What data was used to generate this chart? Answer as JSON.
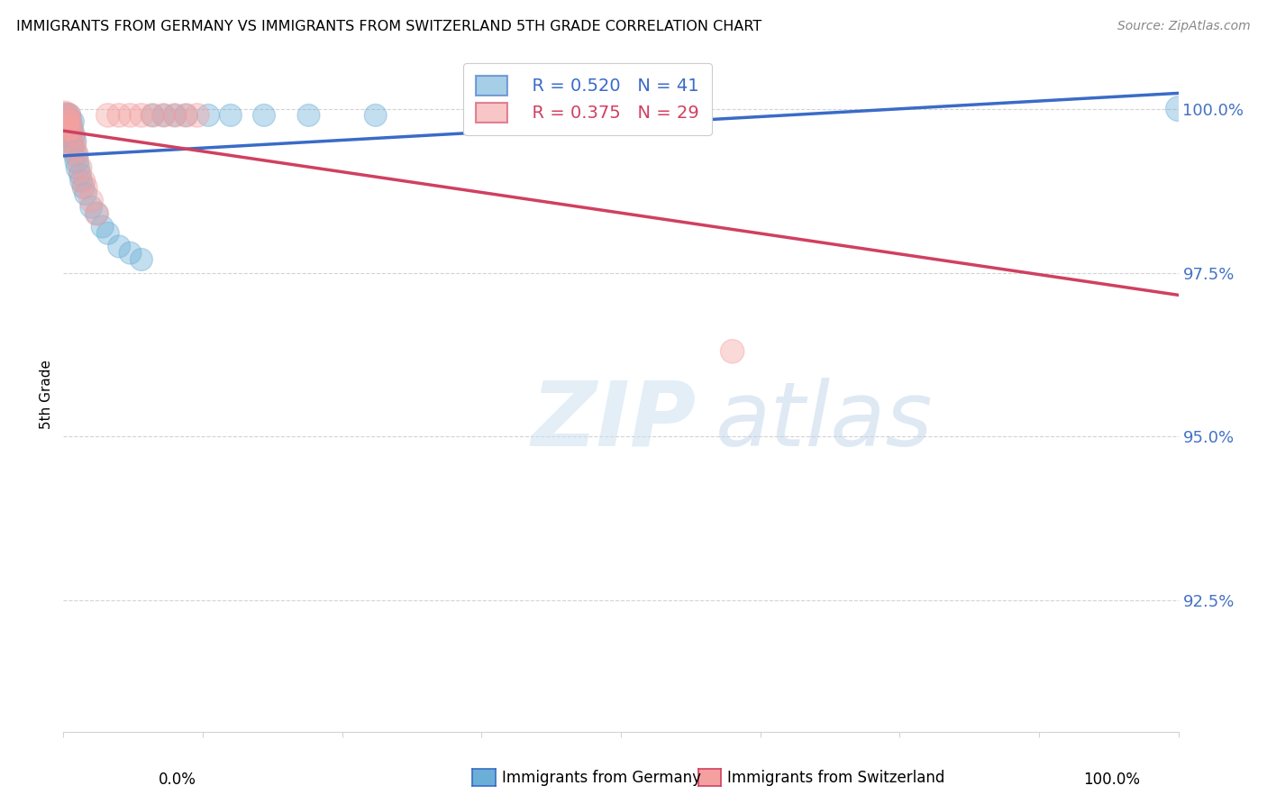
{
  "title": "IMMIGRANTS FROM GERMANY VS IMMIGRANTS FROM SWITZERLAND 5TH GRADE CORRELATION CHART",
  "source": "Source: ZipAtlas.com",
  "ylabel": "5th Grade",
  "y_tick_values": [
    1.0,
    0.975,
    0.95,
    0.925
  ],
  "x_range": [
    0.0,
    1.0
  ],
  "y_range": [
    0.905,
    1.008
  ],
  "legend_blue_r": "R = 0.520",
  "legend_blue_n": "N = 41",
  "legend_pink_r": "R = 0.375",
  "legend_pink_n": "N = 29",
  "blue_color": "#6baed6",
  "pink_color": "#f4a0a0",
  "trendline_blue": "#3a6bc8",
  "trendline_pink": "#d04060",
  "blue_scatter_x": [
    0.001,
    0.002,
    0.003,
    0.003,
    0.004,
    0.004,
    0.005,
    0.005,
    0.006,
    0.006,
    0.007,
    0.007,
    0.008,
    0.008,
    0.009,
    0.01,
    0.011,
    0.012,
    0.013,
    0.015,
    0.016,
    0.018,
    0.02,
    0.025,
    0.03,
    0.035,
    0.04,
    0.05,
    0.06,
    0.07,
    0.08,
    0.09,
    0.1,
    0.11,
    0.13,
    0.15,
    0.18,
    0.22,
    0.28,
    0.55,
    1.0
  ],
  "blue_scatter_y": [
    0.998,
    0.999,
    0.997,
    0.999,
    0.998,
    0.996,
    0.997,
    0.999,
    0.998,
    0.996,
    0.997,
    0.995,
    0.998,
    0.994,
    0.996,
    0.995,
    0.993,
    0.992,
    0.991,
    0.99,
    0.989,
    0.988,
    0.987,
    0.985,
    0.984,
    0.982,
    0.981,
    0.979,
    0.978,
    0.977,
    0.999,
    0.999,
    0.999,
    0.999,
    0.999,
    0.999,
    0.999,
    0.999,
    0.999,
    0.999,
    1.0
  ],
  "blue_scatter_sizes": [
    120,
    100,
    100,
    90,
    90,
    90,
    90,
    90,
    90,
    90,
    90,
    90,
    90,
    90,
    90,
    90,
    90,
    90,
    90,
    80,
    80,
    80,
    80,
    80,
    80,
    80,
    80,
    80,
    80,
    80,
    80,
    80,
    80,
    80,
    80,
    80,
    80,
    80,
    80,
    80,
    100
  ],
  "pink_scatter_x": [
    0.001,
    0.002,
    0.003,
    0.003,
    0.004,
    0.005,
    0.005,
    0.006,
    0.007,
    0.008,
    0.009,
    0.01,
    0.012,
    0.015,
    0.018,
    0.02,
    0.025,
    0.03,
    0.04,
    0.05,
    0.06,
    0.07,
    0.08,
    0.09,
    0.1,
    0.11,
    0.12,
    0.55,
    0.6
  ],
  "pink_scatter_y": [
    0.999,
    0.998,
    0.997,
    0.999,
    0.998,
    0.997,
    0.999,
    0.998,
    0.997,
    0.996,
    0.995,
    0.994,
    0.993,
    0.991,
    0.989,
    0.988,
    0.986,
    0.984,
    0.999,
    0.999,
    0.999,
    0.999,
    0.999,
    0.999,
    0.999,
    0.999,
    0.999,
    0.999,
    0.963
  ],
  "pink_scatter_sizes": [
    130,
    110,
    100,
    100,
    90,
    90,
    90,
    90,
    90,
    90,
    90,
    90,
    90,
    90,
    90,
    90,
    90,
    90,
    90,
    90,
    90,
    90,
    90,
    90,
    90,
    90,
    90,
    90,
    90
  ]
}
